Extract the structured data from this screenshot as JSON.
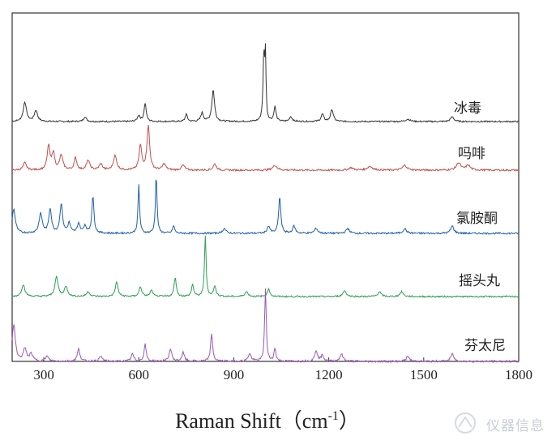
{
  "chart_data": {
    "type": "line",
    "xlabel": "Raman Shift（cm",
    "xlabel_sup": "-1",
    "xlabel_close": "）",
    "xlim": [
      200,
      1800
    ],
    "x_ticks": [
      300,
      600,
      900,
      1200,
      1500,
      1800
    ],
    "x_tick_labels": [
      "300",
      "600",
      "900",
      "1200",
      "1500",
      "1800"
    ],
    "grid": false,
    "series": [
      {
        "name": "冰毒",
        "color": "#333333",
        "baseline": 0.18,
        "noise_amp": 0.006,
        "peaks": [
          [
            240,
            0.16,
            6
          ],
          [
            275,
            0.09,
            6
          ],
          [
            430,
            0.04,
            5
          ],
          [
            600,
            0.05,
            5
          ],
          [
            620,
            0.15,
            4
          ],
          [
            750,
            0.06,
            4
          ],
          [
            800,
            0.07,
            5
          ],
          [
            835,
            0.26,
            5
          ],
          [
            995,
            0.55,
            3
          ],
          [
            1000,
            0.5,
            2
          ],
          [
            1030,
            0.12,
            4
          ],
          [
            1080,
            0.04,
            5
          ],
          [
            1180,
            0.06,
            5
          ],
          [
            1210,
            0.1,
            5
          ],
          [
            1450,
            0.02,
            8
          ],
          [
            1590,
            0.04,
            6
          ]
        ]
      },
      {
        "name": "吗啡",
        "color": "#c0504d",
        "baseline": 0.14,
        "noise_amp": 0.007,
        "peaks": [
          [
            240,
            0.06,
            6
          ],
          [
            315,
            0.2,
            5
          ],
          [
            330,
            0.14,
            5
          ],
          [
            355,
            0.12,
            6
          ],
          [
            400,
            0.1,
            5
          ],
          [
            440,
            0.08,
            6
          ],
          [
            480,
            0.05,
            6
          ],
          [
            525,
            0.12,
            6
          ],
          [
            605,
            0.2,
            5
          ],
          [
            630,
            0.36,
            5
          ],
          [
            680,
            0.05,
            6
          ],
          [
            740,
            0.04,
            6
          ],
          [
            840,
            0.05,
            6
          ],
          [
            1030,
            0.04,
            8
          ],
          [
            1270,
            0.02,
            8
          ],
          [
            1330,
            0.03,
            10
          ],
          [
            1440,
            0.04,
            8
          ],
          [
            1610,
            0.06,
            8
          ],
          [
            1640,
            0.04,
            8
          ]
        ]
      },
      {
        "name": "氯胺酮",
        "color": "#1f5fa8",
        "baseline": 0.14,
        "noise_amp": 0.007,
        "peaks": [
          [
            205,
            0.2,
            6
          ],
          [
            290,
            0.16,
            6
          ],
          [
            320,
            0.2,
            5
          ],
          [
            355,
            0.24,
            5
          ],
          [
            380,
            0.08,
            5
          ],
          [
            410,
            0.08,
            5
          ],
          [
            430,
            0.06,
            5
          ],
          [
            455,
            0.3,
            4
          ],
          [
            600,
            0.4,
            3
          ],
          [
            655,
            0.48,
            3
          ],
          [
            710,
            0.06,
            4
          ],
          [
            870,
            0.04,
            6
          ],
          [
            1010,
            0.06,
            5
          ],
          [
            1045,
            0.3,
            4
          ],
          [
            1090,
            0.06,
            5
          ],
          [
            1160,
            0.04,
            6
          ],
          [
            1260,
            0.04,
            6
          ],
          [
            1440,
            0.04,
            6
          ],
          [
            1590,
            0.06,
            6
          ]
        ]
      },
      {
        "name": "摇头丸",
        "color": "#2e9e55",
        "baseline": 0.12,
        "noise_amp": 0.006,
        "peaks": [
          [
            235,
            0.1,
            6
          ],
          [
            340,
            0.16,
            6
          ],
          [
            370,
            0.08,
            6
          ],
          [
            440,
            0.04,
            6
          ],
          [
            530,
            0.12,
            5
          ],
          [
            605,
            0.08,
            5
          ],
          [
            640,
            0.05,
            5
          ],
          [
            715,
            0.16,
            4
          ],
          [
            770,
            0.1,
            4
          ],
          [
            810,
            0.5,
            3
          ],
          [
            840,
            0.08,
            5
          ],
          [
            940,
            0.04,
            6
          ],
          [
            1010,
            0.06,
            5
          ],
          [
            1250,
            0.05,
            6
          ],
          [
            1360,
            0.04,
            6
          ],
          [
            1430,
            0.04,
            6
          ]
        ]
      },
      {
        "name": "芬太尼",
        "color": "#9b59b6",
        "baseline": 0.1,
        "noise_amp": 0.008,
        "peaks": [
          [
            205,
            0.3,
            6
          ],
          [
            240,
            0.1,
            6
          ],
          [
            260,
            0.06,
            6
          ],
          [
            310,
            0.04,
            6
          ],
          [
            410,
            0.1,
            5
          ],
          [
            480,
            0.04,
            6
          ],
          [
            580,
            0.06,
            5
          ],
          [
            620,
            0.14,
            4
          ],
          [
            700,
            0.1,
            5
          ],
          [
            740,
            0.07,
            5
          ],
          [
            830,
            0.22,
            4
          ],
          [
            950,
            0.06,
            6
          ],
          [
            1000,
            0.6,
            3
          ],
          [
            1030,
            0.1,
            4
          ],
          [
            1160,
            0.09,
            5
          ],
          [
            1180,
            0.05,
            5
          ],
          [
            1240,
            0.06,
            6
          ],
          [
            1450,
            0.04,
            6
          ],
          [
            1590,
            0.06,
            6
          ]
        ]
      }
    ]
  },
  "watermark": {
    "text": "仪器信息"
  }
}
